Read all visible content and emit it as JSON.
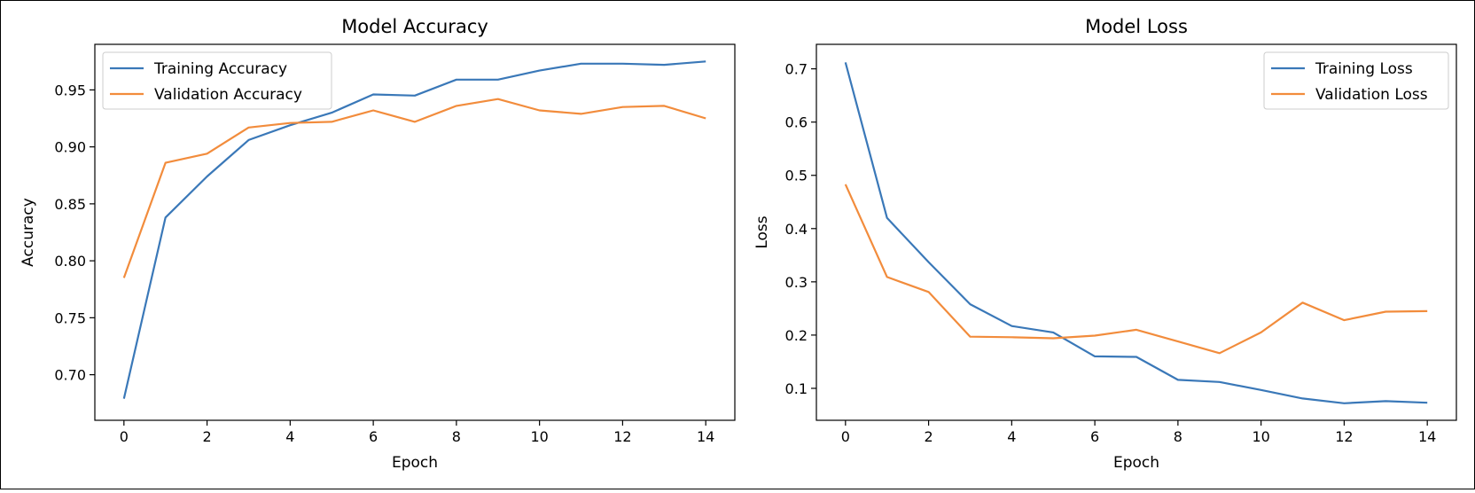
{
  "chart_data": [
    {
      "type": "line",
      "title": "Model Accuracy",
      "xlabel": "Epoch",
      "ylabel": "Accuracy",
      "x": [
        0,
        1,
        2,
        3,
        4,
        5,
        6,
        7,
        8,
        9,
        10,
        11,
        12,
        13,
        14
      ],
      "xlim": [
        -0.7,
        14.7
      ],
      "ylim": [
        0.66,
        0.99
      ],
      "xticks": [
        0,
        2,
        4,
        6,
        8,
        10,
        12,
        14
      ],
      "yticks": [
        0.7,
        0.75,
        0.8,
        0.85,
        0.9,
        0.95
      ],
      "xtick_labels": [
        "0",
        "2",
        "4",
        "6",
        "8",
        "10",
        "12",
        "14"
      ],
      "ytick_labels": [
        "0.70",
        "0.75",
        "0.80",
        "0.85",
        "0.90",
        "0.95"
      ],
      "grid": false,
      "legend_position": "top-left",
      "series": [
        {
          "name": "Training Accuracy",
          "color": "#3a78b8",
          "values": [
            0.679,
            0.838,
            0.874,
            0.906,
            0.919,
            0.93,
            0.946,
            0.945,
            0.959,
            0.959,
            0.967,
            0.973,
            0.973,
            0.972,
            0.975
          ]
        },
        {
          "name": "Validation Accuracy",
          "color": "#f28c3c",
          "values": [
            0.785,
            0.886,
            0.894,
            0.917,
            0.921,
            0.922,
            0.932,
            0.922,
            0.936,
            0.942,
            0.932,
            0.929,
            0.935,
            0.936,
            0.925
          ]
        }
      ]
    },
    {
      "type": "line",
      "title": "Model Loss",
      "xlabel": "Epoch",
      "ylabel": "Loss",
      "x": [
        0,
        1,
        2,
        3,
        4,
        5,
        6,
        7,
        8,
        9,
        10,
        11,
        12,
        13,
        14
      ],
      "xlim": [
        -0.7,
        14.7
      ],
      "ylim": [
        0.04,
        0.746
      ],
      "xticks": [
        0,
        2,
        4,
        6,
        8,
        10,
        12,
        14
      ],
      "yticks": [
        0.1,
        0.2,
        0.3,
        0.4,
        0.5,
        0.6,
        0.7
      ],
      "xtick_labels": [
        "0",
        "2",
        "4",
        "6",
        "8",
        "10",
        "12",
        "14"
      ],
      "ytick_labels": [
        "0.1",
        "0.2",
        "0.3",
        "0.4",
        "0.5",
        "0.6",
        "0.7"
      ],
      "grid": false,
      "legend_position": "top-right",
      "series": [
        {
          "name": "Training Loss",
          "color": "#3a78b8",
          "values": [
            0.712,
            0.42,
            0.337,
            0.258,
            0.217,
            0.205,
            0.16,
            0.159,
            0.116,
            0.112,
            0.097,
            0.081,
            0.072,
            0.076,
            0.073
          ]
        },
        {
          "name": "Validation Loss",
          "color": "#f28c3c",
          "values": [
            0.483,
            0.309,
            0.281,
            0.197,
            0.196,
            0.194,
            0.199,
            0.21,
            0.188,
            0.166,
            0.205,
            0.261,
            0.228,
            0.244,
            0.245
          ]
        }
      ]
    }
  ]
}
